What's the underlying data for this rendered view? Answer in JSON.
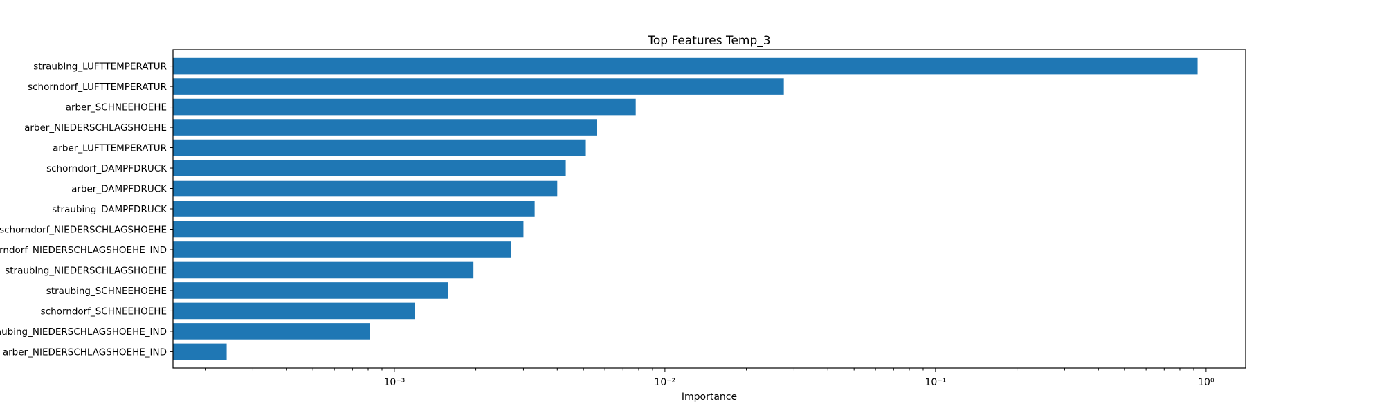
{
  "chart_data": {
    "type": "bar",
    "orientation": "horizontal",
    "title": "Top Features Temp_3",
    "xlabel": "Importance",
    "ylabel": "",
    "xscale": "log",
    "xlim": [
      0.000152,
      1.4
    ],
    "x_ticks": [
      {
        "value": 0.001,
        "label": "10⁻³"
      },
      {
        "value": 0.01,
        "label": "10⁻²"
      },
      {
        "value": 0.1,
        "label": "10⁻¹"
      },
      {
        "value": 1,
        "label": "10⁰"
      }
    ],
    "grid": false,
    "bar_color": "#1f77b4",
    "categories": [
      "straubing_LUFTTEMPERATUR",
      "schorndorf_LUFTTEMPERATUR",
      "arber_SCHNEEHOEHE",
      "arber_NIEDERSCHLAGSHOEHE",
      "arber_LUFTTEMPERATUR",
      "schorndorf_DAMPFDRUCK",
      "arber_DAMPFDRUCK",
      "straubing_DAMPFDRUCK",
      "schorndorf_NIEDERSCHLAGSHOEHE",
      "schorndorf_NIEDERSCHLAGSHOEHE_IND",
      "straubing_NIEDERSCHLAGSHOEHE",
      "straubing_SCHNEEHOEHE",
      "schorndorf_SCHNEEHOEHE",
      "straubing_NIEDERSCHLAGSHOEHE_IND",
      "arber_NIEDERSCHLAGSHOEHE_IND"
    ],
    "values": [
      0.93,
      0.0275,
      0.0078,
      0.0056,
      0.0051,
      0.0043,
      0.004,
      0.0033,
      0.003,
      0.0027,
      0.00196,
      0.00158,
      0.00119,
      0.00081,
      0.00024
    ]
  }
}
